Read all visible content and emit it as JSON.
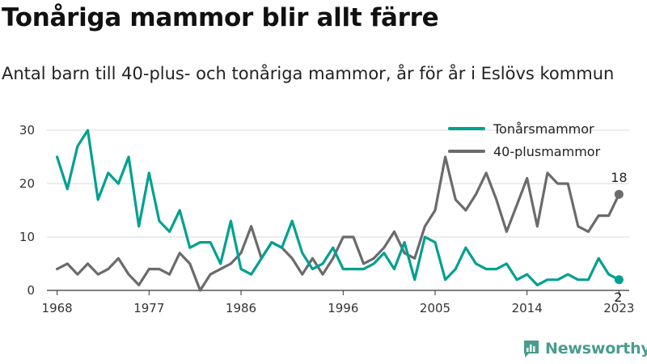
{
  "header": {
    "title": "Tonåriga mammor blir allt färre",
    "subtitle": "Antal barn till 40-plus- och tonåriga mammor, år för år i Eslövs kommun"
  },
  "brand": {
    "name": "Newsworthy",
    "icon": "newsworthy-logo-icon"
  },
  "colors": {
    "teen": "#00a091",
    "forty": "#6b6b6e",
    "grid": "#d9d9d9"
  },
  "chart_data": {
    "type": "line",
    "x": [
      1968,
      1969,
      1970,
      1971,
      1972,
      1973,
      1974,
      1975,
      1976,
      1977,
      1978,
      1979,
      1980,
      1981,
      1982,
      1983,
      1984,
      1985,
      1986,
      1987,
      1988,
      1989,
      1990,
      1991,
      1992,
      1993,
      1994,
      1995,
      1996,
      1997,
      1998,
      1999,
      2000,
      2001,
      2002,
      2003,
      2004,
      2005,
      2006,
      2007,
      2008,
      2009,
      2010,
      2011,
      2012,
      2013,
      2014,
      2015,
      2016,
      2017,
      2018,
      2019,
      2020,
      2021,
      2022,
      2023
    ],
    "series": [
      {
        "name": "Tonårsmammor",
        "color": "#00a091",
        "values": [
          25,
          19,
          27,
          30,
          17,
          22,
          20,
          25,
          12,
          22,
          13,
          11,
          15,
          8,
          9,
          9,
          5,
          13,
          4,
          3,
          6,
          9,
          8,
          13,
          7,
          4,
          5,
          8,
          4,
          4,
          4,
          5,
          7,
          4,
          9,
          2,
          10,
          9,
          2,
          4,
          8,
          5,
          4,
          4,
          5,
          2,
          3,
          1,
          2,
          2,
          3,
          2,
          2,
          6,
          3,
          2
        ]
      },
      {
        "name": "40-plusmammor",
        "color": "#6b6b6e",
        "values": [
          4,
          5,
          3,
          5,
          3,
          4,
          6,
          3,
          1,
          4,
          4,
          3,
          7,
          5,
          0,
          3,
          4,
          5,
          7,
          12,
          6,
          9,
          8,
          6,
          3,
          6,
          3,
          6,
          10,
          10,
          5,
          6,
          8,
          11,
          7,
          6,
          12,
          15,
          25,
          17,
          15,
          18,
          22,
          17,
          11,
          16,
          21,
          12,
          22,
          20,
          20,
          12,
          11,
          14,
          14,
          18
        ]
      }
    ],
    "xticks": [
      "1968",
      "1977",
      "1986",
      "1996",
      "2005",
      "2014",
      "2023"
    ],
    "yticks": [
      "0",
      "10",
      "20",
      "30"
    ],
    "ylim": [
      0,
      30
    ],
    "xlim": [
      1967,
      2024
    ],
    "end_labels": [
      "18",
      "2"
    ],
    "legend": {
      "position": "top-right",
      "items": [
        "Tonårsmammor",
        "40-plusmammor"
      ]
    },
    "grid": "horizontal",
    "xlabel": "",
    "ylabel": ""
  }
}
